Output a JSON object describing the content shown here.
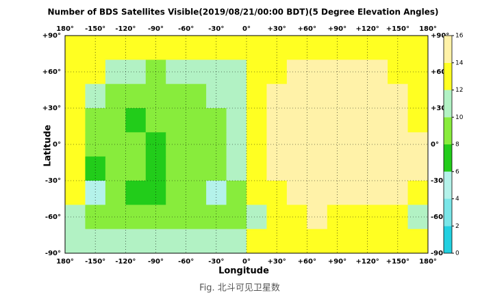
{
  "chart_data": {
    "type": "heatmap",
    "title": "Number of BDS Satellites Visible(2019/08/21/00:00 BDT)(5 Degree Elevation Angles)",
    "xlabel": "Longitude",
    "ylabel": "Latitude",
    "x": [
      -170,
      -150,
      -130,
      -110,
      -90,
      -70,
      -50,
      -30,
      -10,
      10,
      30,
      50,
      70,
      90,
      110,
      130,
      150,
      170
    ],
    "y": [
      80,
      60,
      40,
      20,
      0,
      -20,
      -40,
      -60,
      -80
    ],
    "values": [
      [
        13,
        13,
        13,
        13,
        13,
        13,
        13,
        13,
        13,
        13,
        13,
        13,
        13,
        13,
        13,
        13,
        13,
        13
      ],
      [
        13,
        13,
        11,
        11,
        9,
        11,
        11,
        11,
        11,
        13,
        13,
        15,
        15,
        15,
        15,
        15,
        13,
        13
      ],
      [
        13,
        11,
        9,
        9,
        9,
        9,
        9,
        11,
        11,
        13,
        15,
        15,
        15,
        15,
        15,
        15,
        15,
        13
      ],
      [
        13,
        9,
        9,
        7,
        9,
        9,
        9,
        9,
        11,
        13,
        15,
        15,
        15,
        15,
        15,
        15,
        15,
        13
      ],
      [
        13,
        9,
        9,
        9,
        7,
        9,
        9,
        9,
        11,
        13,
        15,
        15,
        15,
        15,
        15,
        15,
        15,
        15
      ],
      [
        13,
        7,
        9,
        9,
        7,
        9,
        9,
        9,
        11,
        13,
        15,
        15,
        15,
        15,
        15,
        15,
        15,
        15
      ],
      [
        13,
        5,
        9,
        7,
        7,
        9,
        9,
        5,
        9,
        13,
        13,
        15,
        15,
        15,
        15,
        15,
        15,
        13
      ],
      [
        11,
        9,
        9,
        9,
        9,
        9,
        9,
        9,
        9,
        11,
        13,
        13,
        15,
        13,
        13,
        13,
        13,
        11
      ],
      [
        11,
        11,
        11,
        11,
        11,
        11,
        11,
        11,
        11,
        13,
        13,
        13,
        13,
        13,
        13,
        13,
        13,
        13
      ]
    ],
    "xlim": [
      -180,
      180
    ],
    "ylim": [
      -90,
      90
    ],
    "xticks": [
      {
        "value": -180,
        "label": "180°"
      },
      {
        "value": -150,
        "label": "-150°"
      },
      {
        "value": -120,
        "label": "-120°"
      },
      {
        "value": -90,
        "label": "-90°"
      },
      {
        "value": -60,
        "label": "-60°"
      },
      {
        "value": -30,
        "label": "-30°"
      },
      {
        "value": 0,
        "label": "0°"
      },
      {
        "value": 30,
        "label": "+30°"
      },
      {
        "value": 60,
        "label": "+60°"
      },
      {
        "value": 90,
        "label": "+90°"
      },
      {
        "value": 120,
        "label": "+120°"
      },
      {
        "value": 150,
        "label": "+150°"
      },
      {
        "value": 180,
        "label": "180°"
      }
    ],
    "yticks": [
      {
        "value": -90,
        "label": "-90°"
      },
      {
        "value": -60,
        "label": "-60°"
      },
      {
        "value": -30,
        "label": "-30°"
      },
      {
        "value": 0,
        "label": "0°"
      },
      {
        "value": 30,
        "label": "+30°"
      },
      {
        "value": 60,
        "label": "+60°"
      },
      {
        "value": 90,
        "label": "+90°"
      }
    ],
    "grid": true,
    "clim": [
      0,
      16
    ],
    "levels": [
      0,
      2,
      4,
      6,
      8,
      10,
      12,
      14,
      16
    ],
    "colors": [
      "#22d0e0",
      "#7ae6e8",
      "#b4f2ea",
      "#22cc1a",
      "#88ec3c",
      "#b2f2c4",
      "#ffff22",
      "#fff2a8"
    ],
    "cticks": [
      0,
      2,
      4,
      6,
      8,
      10,
      12,
      14,
      16
    ]
  },
  "caption": "Fig. 北斗可见卫星数"
}
